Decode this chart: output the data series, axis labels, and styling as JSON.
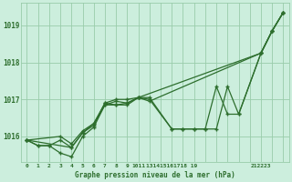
{
  "bg_color": "#cceedd",
  "grid_color": "#99ccaa",
  "line_color": "#2d6e2d",
  "marker_color": "#2d6e2d",
  "title": "Graphe pression niveau de la mer (hPa)",
  "title_color": "#2d6e2d",
  "ylabel_ticks": [
    1016,
    1017,
    1018,
    1019
  ],
  "xlim": [
    -0.5,
    23.5
  ],
  "ylim": [
    1015.3,
    1019.6
  ],
  "series": [
    {
      "x": [
        0,
        1,
        2,
        3,
        4,
        5,
        6,
        7,
        8,
        9,
        10,
        11,
        13,
        14,
        15,
        16,
        17,
        18,
        19,
        21,
        22,
        23
      ],
      "y": [
        1015.9,
        1015.75,
        1015.75,
        1015.9,
        1015.7,
        1016.1,
        1016.3,
        1016.9,
        1016.85,
        1016.9,
        1017.05,
        1017.0,
        1016.2,
        1016.2,
        1016.2,
        1016.2,
        1016.2,
        1017.35,
        1016.6,
        1018.25,
        1018.85,
        1019.35
      ]
    },
    {
      "x": [
        0,
        1,
        2,
        3,
        4,
        5,
        6,
        7,
        8,
        9,
        10,
        21,
        22,
        23
      ],
      "y": [
        1015.9,
        1015.75,
        1015.75,
        1015.55,
        1015.45,
        1016.0,
        1016.25,
        1016.85,
        1016.85,
        1016.85,
        1017.05,
        1018.25,
        1018.85,
        1019.35
      ]
    },
    {
      "x": [
        0,
        3,
        4,
        5,
        6,
        7,
        8,
        9,
        10,
        11,
        21,
        22,
        23
      ],
      "y": [
        1015.9,
        1016.0,
        1015.8,
        1016.15,
        1016.35,
        1016.9,
        1017.0,
        1017.0,
        1017.05,
        1016.95,
        1018.25,
        1018.85,
        1019.35
      ]
    },
    {
      "x": [
        0,
        4,
        5,
        6,
        7,
        8,
        9,
        10,
        11,
        13,
        14,
        15,
        16,
        17,
        18,
        19,
        21,
        22,
        23
      ],
      "y": [
        1015.9,
        1015.7,
        1016.1,
        1016.35,
        1016.85,
        1016.95,
        1016.9,
        1017.05,
        1017.05,
        1016.2,
        1016.2,
        1016.2,
        1016.2,
        1017.35,
        1016.6,
        1016.6,
        1018.25,
        1018.85,
        1019.35
      ]
    }
  ],
  "xtick_positions": [
    0,
    1,
    2,
    3,
    4,
    5,
    6,
    7,
    8,
    9,
    10,
    11,
    13,
    14,
    15,
    16,
    17,
    18,
    19,
    21,
    22,
    23
  ],
  "xtick_labels": [
    "0",
    "1",
    "2",
    "3",
    "4",
    "5",
    "6",
    "7",
    "8",
    "9",
    "1011",
    "",
    "13141516171819",
    "",
    "",
    "",
    "",
    "",
    "",
    "212223",
    "",
    ""
  ]
}
